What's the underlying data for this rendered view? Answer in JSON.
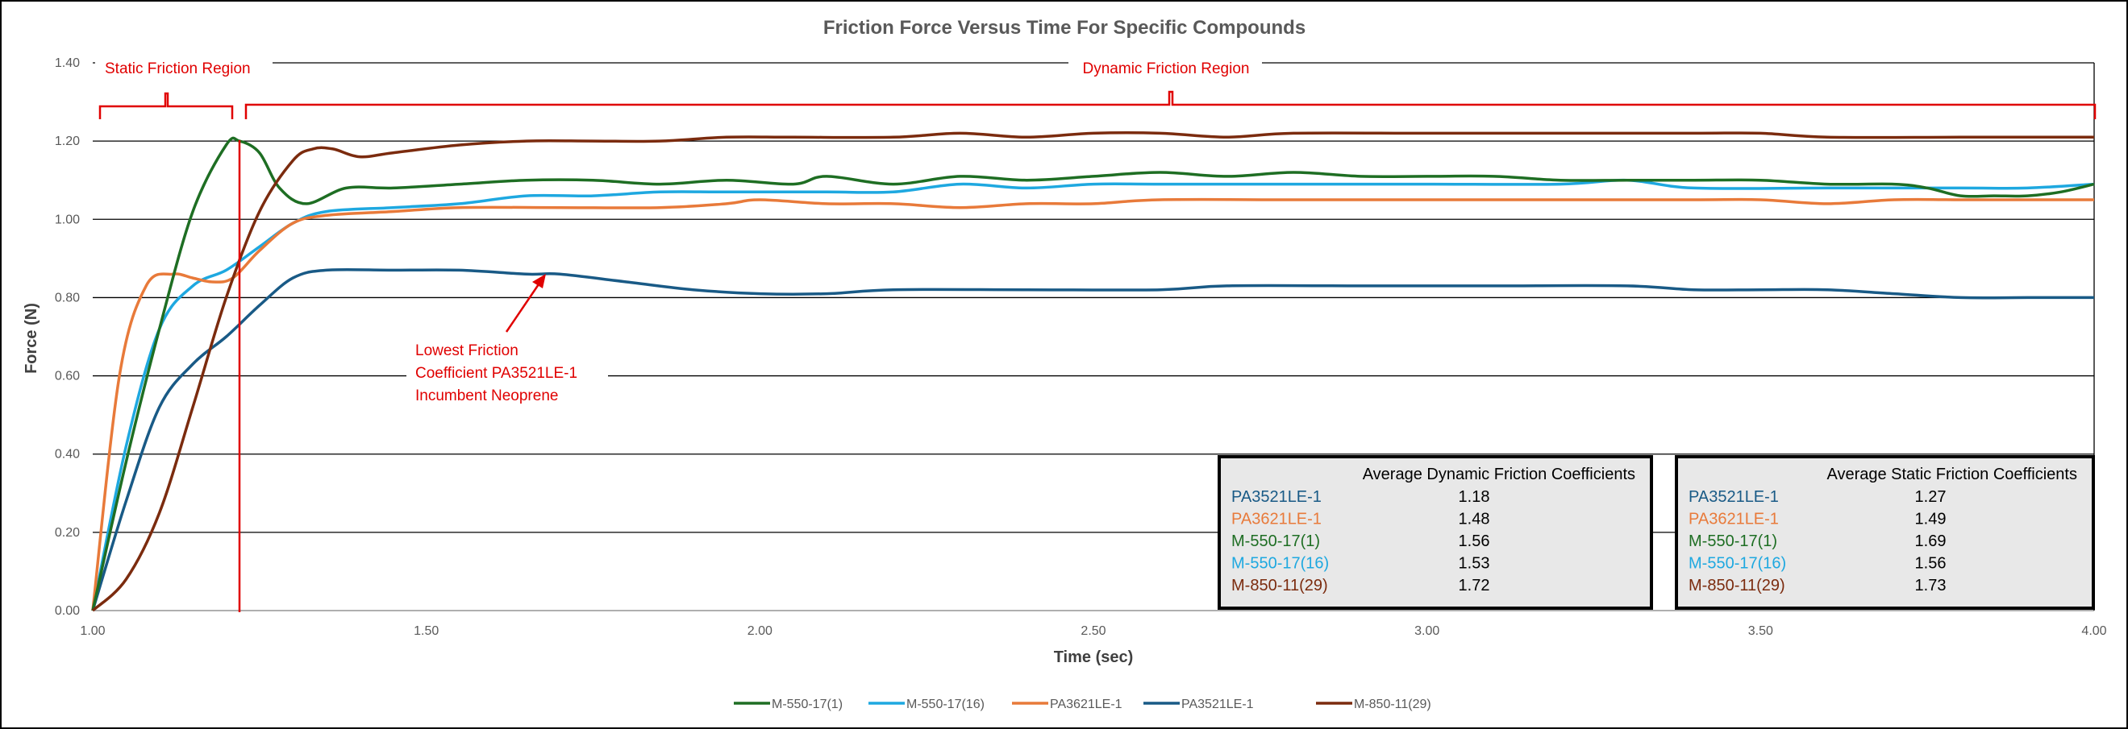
{
  "colors": {
    "M-550-17(1)": "#1e6e23",
    "M-550-17(16)": "#1ea8e0",
    "PA3621LE-1": "#e87a3a",
    "PA3521LE-1": "#195a86",
    "M-850-11(29)": "#7b2b0e",
    "annotation": "#e00000"
  },
  "chart_data": {
    "type": "line",
    "title": "Friction Force Versus Time For Specific Compounds",
    "xlabel": "Time (sec)",
    "ylabel": "Force (N)",
    "xlim": [
      1.0,
      4.0
    ],
    "ylim": [
      0.0,
      1.4
    ],
    "x_ticks": [
      "1.00",
      "1.50",
      "2.00",
      "2.50",
      "3.00",
      "3.50",
      "4.00"
    ],
    "y_ticks": [
      "0.00",
      "0.20",
      "0.40",
      "0.60",
      "0.80",
      "1.00",
      "1.20",
      "1.40"
    ],
    "grid": "horizontal",
    "legend_position": "bottom",
    "series": [
      {
        "name": "M-550-17(1)",
        "points": [
          [
            1.0,
            0.0
          ],
          [
            1.05,
            0.38
          ],
          [
            1.1,
            0.72
          ],
          [
            1.15,
            1.02
          ],
          [
            1.2,
            1.19
          ],
          [
            1.22,
            1.2
          ],
          [
            1.25,
            1.17
          ],
          [
            1.28,
            1.08
          ],
          [
            1.32,
            1.04
          ],
          [
            1.38,
            1.08
          ],
          [
            1.45,
            1.08
          ],
          [
            1.55,
            1.09
          ],
          [
            1.65,
            1.1
          ],
          [
            1.75,
            1.1
          ],
          [
            1.85,
            1.09
          ],
          [
            1.95,
            1.1
          ],
          [
            2.05,
            1.09
          ],
          [
            2.1,
            1.11
          ],
          [
            2.2,
            1.09
          ],
          [
            2.3,
            1.11
          ],
          [
            2.4,
            1.1
          ],
          [
            2.5,
            1.11
          ],
          [
            2.6,
            1.12
          ],
          [
            2.7,
            1.11
          ],
          [
            2.8,
            1.12
          ],
          [
            2.9,
            1.11
          ],
          [
            3.0,
            1.11
          ],
          [
            3.1,
            1.11
          ],
          [
            3.2,
            1.1
          ],
          [
            3.3,
            1.1
          ],
          [
            3.4,
            1.1
          ],
          [
            3.5,
            1.1
          ],
          [
            3.6,
            1.09
          ],
          [
            3.7,
            1.09
          ],
          [
            3.75,
            1.08
          ],
          [
            3.8,
            1.06
          ],
          [
            3.85,
            1.06
          ],
          [
            3.9,
            1.06
          ],
          [
            3.95,
            1.07
          ],
          [
            4.0,
            1.09
          ]
        ]
      },
      {
        "name": "M-550-17(16)",
        "points": [
          [
            1.0,
            0.0
          ],
          [
            1.05,
            0.42
          ],
          [
            1.1,
            0.72
          ],
          [
            1.15,
            0.83
          ],
          [
            1.2,
            0.87
          ],
          [
            1.25,
            0.93
          ],
          [
            1.3,
            0.99
          ],
          [
            1.35,
            1.02
          ],
          [
            1.45,
            1.03
          ],
          [
            1.55,
            1.04
          ],
          [
            1.65,
            1.06
          ],
          [
            1.75,
            1.06
          ],
          [
            1.85,
            1.07
          ],
          [
            1.95,
            1.07
          ],
          [
            2.1,
            1.07
          ],
          [
            2.2,
            1.07
          ],
          [
            2.3,
            1.09
          ],
          [
            2.4,
            1.08
          ],
          [
            2.5,
            1.09
          ],
          [
            2.6,
            1.09
          ],
          [
            2.8,
            1.09
          ],
          [
            3.0,
            1.09
          ],
          [
            3.2,
            1.09
          ],
          [
            3.3,
            1.1
          ],
          [
            3.4,
            1.08
          ],
          [
            3.6,
            1.08
          ],
          [
            3.8,
            1.08
          ],
          [
            3.9,
            1.08
          ],
          [
            4.0,
            1.09
          ]
        ]
      },
      {
        "name": "PA3621LE-1",
        "points": [
          [
            1.0,
            0.0
          ],
          [
            1.04,
            0.6
          ],
          [
            1.08,
            0.83
          ],
          [
            1.12,
            0.86
          ],
          [
            1.15,
            0.85
          ],
          [
            1.18,
            0.84
          ],
          [
            1.21,
            0.85
          ],
          [
            1.25,
            0.92
          ],
          [
            1.3,
            0.99
          ],
          [
            1.35,
            1.01
          ],
          [
            1.45,
            1.02
          ],
          [
            1.55,
            1.03
          ],
          [
            1.7,
            1.03
          ],
          [
            1.85,
            1.03
          ],
          [
            1.95,
            1.04
          ],
          [
            2.0,
            1.05
          ],
          [
            2.1,
            1.04
          ],
          [
            2.2,
            1.04
          ],
          [
            2.3,
            1.03
          ],
          [
            2.4,
            1.04
          ],
          [
            2.5,
            1.04
          ],
          [
            2.6,
            1.05
          ],
          [
            2.8,
            1.05
          ],
          [
            3.0,
            1.05
          ],
          [
            3.2,
            1.05
          ],
          [
            3.4,
            1.05
          ],
          [
            3.5,
            1.05
          ],
          [
            3.6,
            1.04
          ],
          [
            3.7,
            1.05
          ],
          [
            3.8,
            1.05
          ],
          [
            3.9,
            1.05
          ],
          [
            4.0,
            1.05
          ]
        ]
      },
      {
        "name": "PA3521LE-1",
        "points": [
          [
            1.0,
            0.0
          ],
          [
            1.05,
            0.28
          ],
          [
            1.1,
            0.52
          ],
          [
            1.15,
            0.63
          ],
          [
            1.2,
            0.7
          ],
          [
            1.25,
            0.78
          ],
          [
            1.3,
            0.85
          ],
          [
            1.35,
            0.87
          ],
          [
            1.45,
            0.87
          ],
          [
            1.55,
            0.87
          ],
          [
            1.65,
            0.86
          ],
          [
            1.7,
            0.86
          ],
          [
            1.8,
            0.84
          ],
          [
            1.9,
            0.82
          ],
          [
            2.0,
            0.81
          ],
          [
            2.1,
            0.81
          ],
          [
            2.2,
            0.82
          ],
          [
            2.4,
            0.82
          ],
          [
            2.6,
            0.82
          ],
          [
            2.7,
            0.83
          ],
          [
            2.9,
            0.83
          ],
          [
            3.1,
            0.83
          ],
          [
            3.3,
            0.83
          ],
          [
            3.4,
            0.82
          ],
          [
            3.5,
            0.82
          ],
          [
            3.6,
            0.82
          ],
          [
            3.7,
            0.81
          ],
          [
            3.8,
            0.8
          ],
          [
            3.9,
            0.8
          ],
          [
            4.0,
            0.8
          ]
        ]
      },
      {
        "name": "M-850-11(29)",
        "points": [
          [
            1.0,
            0.0
          ],
          [
            1.05,
            0.08
          ],
          [
            1.1,
            0.25
          ],
          [
            1.15,
            0.52
          ],
          [
            1.2,
            0.8
          ],
          [
            1.25,
            1.02
          ],
          [
            1.3,
            1.15
          ],
          [
            1.33,
            1.18
          ],
          [
            1.36,
            1.18
          ],
          [
            1.4,
            1.16
          ],
          [
            1.45,
            1.17
          ],
          [
            1.55,
            1.19
          ],
          [
            1.65,
            1.2
          ],
          [
            1.75,
            1.2
          ],
          [
            1.85,
            1.2
          ],
          [
            1.95,
            1.21
          ],
          [
            2.05,
            1.21
          ],
          [
            2.2,
            1.21
          ],
          [
            2.3,
            1.22
          ],
          [
            2.4,
            1.21
          ],
          [
            2.5,
            1.22
          ],
          [
            2.6,
            1.22
          ],
          [
            2.7,
            1.21
          ],
          [
            2.8,
            1.22
          ],
          [
            3.0,
            1.22
          ],
          [
            3.2,
            1.22
          ],
          [
            3.4,
            1.22
          ],
          [
            3.5,
            1.22
          ],
          [
            3.6,
            1.21
          ],
          [
            3.8,
            1.21
          ],
          [
            4.0,
            1.21
          ]
        ]
      }
    ],
    "annotations": {
      "static_region": "Static Friction Region",
      "dynamic_region": "Dynamic Friction Region",
      "callout": [
        "Lowest Friction",
        "Coefficient PA3521LE-1",
        "Incumbent Neoprene"
      ]
    },
    "tables": [
      {
        "title": "Average Dynamic Friction Coefficients",
        "rows": [
          {
            "name": "PA3521LE-1",
            "value": "1.18"
          },
          {
            "name": "PA3621LE-1",
            "value": "1.48"
          },
          {
            "name": "M-550-17(1)",
            "value": "1.56"
          },
          {
            "name": "M-550-17(16)",
            "value": "1.53"
          },
          {
            "name": "M-850-11(29)",
            "value": "1.72"
          }
        ]
      },
      {
        "title": "Average Static Friction Coefficients",
        "rows": [
          {
            "name": "PA3521LE-1",
            "value": "1.27"
          },
          {
            "name": "PA3621LE-1",
            "value": "1.49"
          },
          {
            "name": "M-550-17(1)",
            "value": "1.69"
          },
          {
            "name": "M-550-17(16)",
            "value": "1.56"
          },
          {
            "name": "M-850-11(29)",
            "value": "1.73"
          }
        ]
      }
    ],
    "legend": [
      "M-550-17(1)",
      "M-550-17(16)",
      "PA3621LE-1",
      "PA3521LE-1",
      "M-850-11(29)"
    ]
  }
}
